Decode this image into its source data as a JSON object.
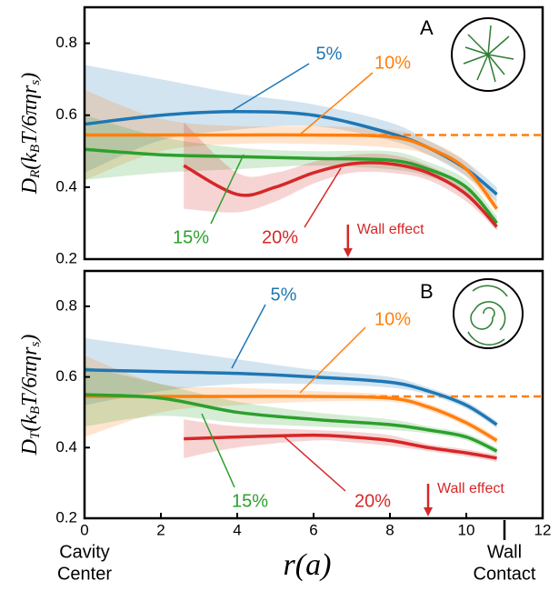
{
  "chart_data": [
    {
      "type": "line",
      "panel": "A",
      "ylabel": [
        "D",
        "R",
        "(k",
        "B",
        "T/6πηr",
        "s",
        ")"
      ],
      "xlim": [
        0,
        12
      ],
      "ylim": [
        0.2,
        0.9
      ],
      "yticks": [
        0.2,
        0.4,
        0.6,
        0.8
      ],
      "reference_line": 0.545,
      "reference_color": "#ff7f0e",
      "wall_effect": {
        "text": "Wall effect",
        "x": 6.9,
        "color": "#d62728"
      },
      "series": [
        {
          "name": "5%",
          "color": "#1f77b4",
          "x": [
            0,
            2,
            4,
            6,
            8,
            9,
            10,
            10.8
          ],
          "values": [
            0.575,
            0.6,
            0.61,
            0.6,
            0.55,
            0.51,
            0.45,
            0.38
          ],
          "band_lower": [
            0.44,
            0.53,
            0.56,
            0.57,
            0.53,
            0.49,
            0.43,
            0.36
          ],
          "band_upper": [
            0.74,
            0.7,
            0.66,
            0.63,
            0.58,
            0.53,
            0.47,
            0.4
          ]
        },
        {
          "name": "10%",
          "color": "#ff7f0e",
          "x": [
            0,
            2,
            4,
            6,
            8,
            9,
            10,
            10.8
          ],
          "values": [
            0.545,
            0.545,
            0.545,
            0.545,
            0.54,
            0.51,
            0.45,
            0.34
          ],
          "band_lower": [
            0.42,
            0.5,
            0.52,
            0.52,
            0.51,
            0.49,
            0.43,
            0.33
          ],
          "band_upper": [
            0.67,
            0.59,
            0.57,
            0.57,
            0.56,
            0.53,
            0.47,
            0.36
          ]
        },
        {
          "name": "15%",
          "color": "#2ca02c",
          "x": [
            0,
            2,
            4,
            6,
            8,
            9,
            10,
            10.8
          ],
          "values": [
            0.505,
            0.49,
            0.485,
            0.48,
            0.475,
            0.45,
            0.4,
            0.3
          ],
          "band_lower": [
            0.42,
            0.44,
            0.45,
            0.46,
            0.45,
            0.43,
            0.38,
            0.28
          ],
          "band_upper": [
            0.6,
            0.54,
            0.51,
            0.5,
            0.5,
            0.47,
            0.42,
            0.32
          ]
        },
        {
          "name": "20%",
          "color": "#d62728",
          "x": [
            2.6,
            4,
            5,
            6,
            7,
            8,
            9,
            10,
            10.8
          ],
          "values": [
            0.46,
            0.38,
            0.4,
            0.44,
            0.465,
            0.465,
            0.44,
            0.38,
            0.29
          ],
          "band_lower": [
            0.34,
            0.33,
            0.36,
            0.41,
            0.44,
            0.44,
            0.42,
            0.36,
            0.28
          ],
          "band_upper": [
            0.58,
            0.44,
            0.44,
            0.47,
            0.49,
            0.49,
            0.46,
            0.4,
            0.31
          ]
        }
      ]
    },
    {
      "type": "line",
      "panel": "B",
      "ylabel": [
        "D",
        "T",
        "(k",
        "B",
        "T/6πηr",
        "s",
        ")"
      ],
      "xlabel": "r(a)",
      "x_left_label": [
        "Cavity",
        "Center"
      ],
      "x_right_label": [
        "Wall",
        "Contact"
      ],
      "xlim": [
        0,
        12
      ],
      "xticks": [
        0,
        2,
        4,
        6,
        8,
        10,
        12
      ],
      "wall_marker_x": 11,
      "ylim": [
        0.2,
        0.9
      ],
      "yticks": [
        0.2,
        0.4,
        0.6,
        0.8
      ],
      "reference_line": 0.545,
      "reference_color": "#ff7f0e",
      "wall_effect": {
        "text": "Wall effect",
        "x": 9,
        "color": "#d62728"
      },
      "series": [
        {
          "name": "5%",
          "color": "#1f77b4",
          "x": [
            0,
            2,
            4,
            6,
            8,
            9,
            10,
            10.8
          ],
          "values": [
            0.62,
            0.615,
            0.61,
            0.6,
            0.585,
            0.56,
            0.52,
            0.465
          ],
          "band_lower": [
            0.52,
            0.56,
            0.58,
            0.58,
            0.57,
            0.55,
            0.51,
            0.455
          ],
          "band_upper": [
            0.71,
            0.68,
            0.65,
            0.62,
            0.6,
            0.57,
            0.53,
            0.475
          ]
        },
        {
          "name": "10%",
          "color": "#ff7f0e",
          "x": [
            0,
            2,
            4,
            6,
            8,
            9,
            10,
            10.8
          ],
          "values": [
            0.545,
            0.545,
            0.545,
            0.545,
            0.54,
            0.515,
            0.47,
            0.42
          ],
          "band_lower": [
            0.43,
            0.5,
            0.52,
            0.53,
            0.53,
            0.505,
            0.46,
            0.41
          ],
          "band_upper": [
            0.66,
            0.58,
            0.57,
            0.56,
            0.55,
            0.525,
            0.48,
            0.43
          ]
        },
        {
          "name": "15%",
          "color": "#2ca02c",
          "x": [
            0,
            2,
            4,
            6,
            8,
            9,
            10,
            10.8
          ],
          "values": [
            0.55,
            0.54,
            0.5,
            0.48,
            0.465,
            0.45,
            0.43,
            0.39
          ],
          "band_lower": [
            0.46,
            0.49,
            0.47,
            0.46,
            0.45,
            0.44,
            0.42,
            0.38
          ],
          "band_upper": [
            0.63,
            0.58,
            0.53,
            0.5,
            0.48,
            0.46,
            0.44,
            0.4
          ]
        },
        {
          "name": "20%",
          "color": "#d62728",
          "x": [
            2.6,
            4,
            6,
            7,
            8,
            9,
            10,
            10.8
          ],
          "values": [
            0.425,
            0.43,
            0.435,
            0.43,
            0.42,
            0.4,
            0.385,
            0.37
          ],
          "band_lower": [
            0.37,
            0.4,
            0.42,
            0.415,
            0.405,
            0.39,
            0.375,
            0.36
          ],
          "band_upper": [
            0.48,
            0.46,
            0.45,
            0.445,
            0.435,
            0.41,
            0.395,
            0.38
          ]
        }
      ]
    }
  ]
}
